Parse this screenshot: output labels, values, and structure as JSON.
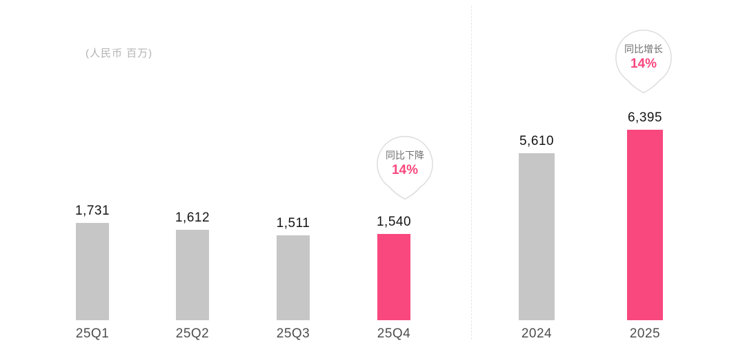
{
  "unit_label": "(人民币 百万)",
  "colors": {
    "pink": "#F8487E",
    "gray": "#C6C6C6",
    "bubble_border": "#DCDCDC",
    "bubble_label_gray": "#6E6E6E"
  },
  "chart_data": [
    {
      "type": "bar",
      "section": "quarterly",
      "categories": [
        "25Q1",
        "25Q2",
        "25Q3",
        "25Q4"
      ],
      "values": [
        1731,
        1612,
        1511,
        1540
      ],
      "value_labels": [
        "1,731",
        "1,612",
        "1,511",
        "1,540"
      ],
      "bar_colors": [
        "gray",
        "gray",
        "gray",
        "pink"
      ],
      "xlabel": "",
      "ylabel": "",
      "grid": "off",
      "annotation": {
        "text": "同比下降",
        "value": "14%",
        "target": "25Q4"
      }
    },
    {
      "type": "bar",
      "section": "annual",
      "categories": [
        "2024",
        "2025"
      ],
      "values": [
        5610,
        6395
      ],
      "value_labels": [
        "5,610",
        "6,395"
      ],
      "bar_colors": [
        "gray",
        "pink"
      ],
      "xlabel": "",
      "ylabel": "",
      "grid": "off",
      "annotation": {
        "text": "同比增长",
        "value": "14%",
        "target": "2025"
      }
    }
  ]
}
